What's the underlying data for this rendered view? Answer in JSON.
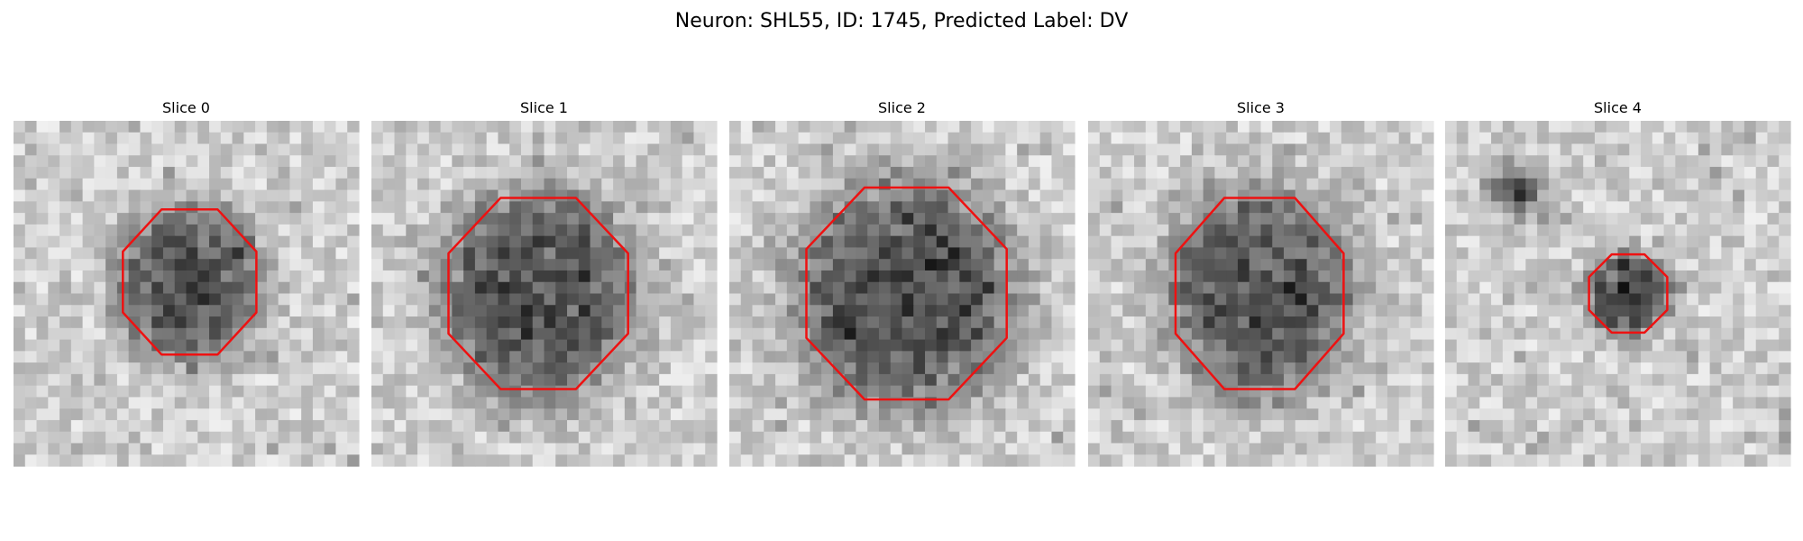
{
  "title": "Neuron: SHL55, ID: 1745, Predicted Label: DV",
  "panels": [
    {
      "title": "Slice 0"
    },
    {
      "title": "Slice 1"
    },
    {
      "title": "Slice 2"
    },
    {
      "title": "Slice 3"
    },
    {
      "title": "Slice 4"
    }
  ]
}
